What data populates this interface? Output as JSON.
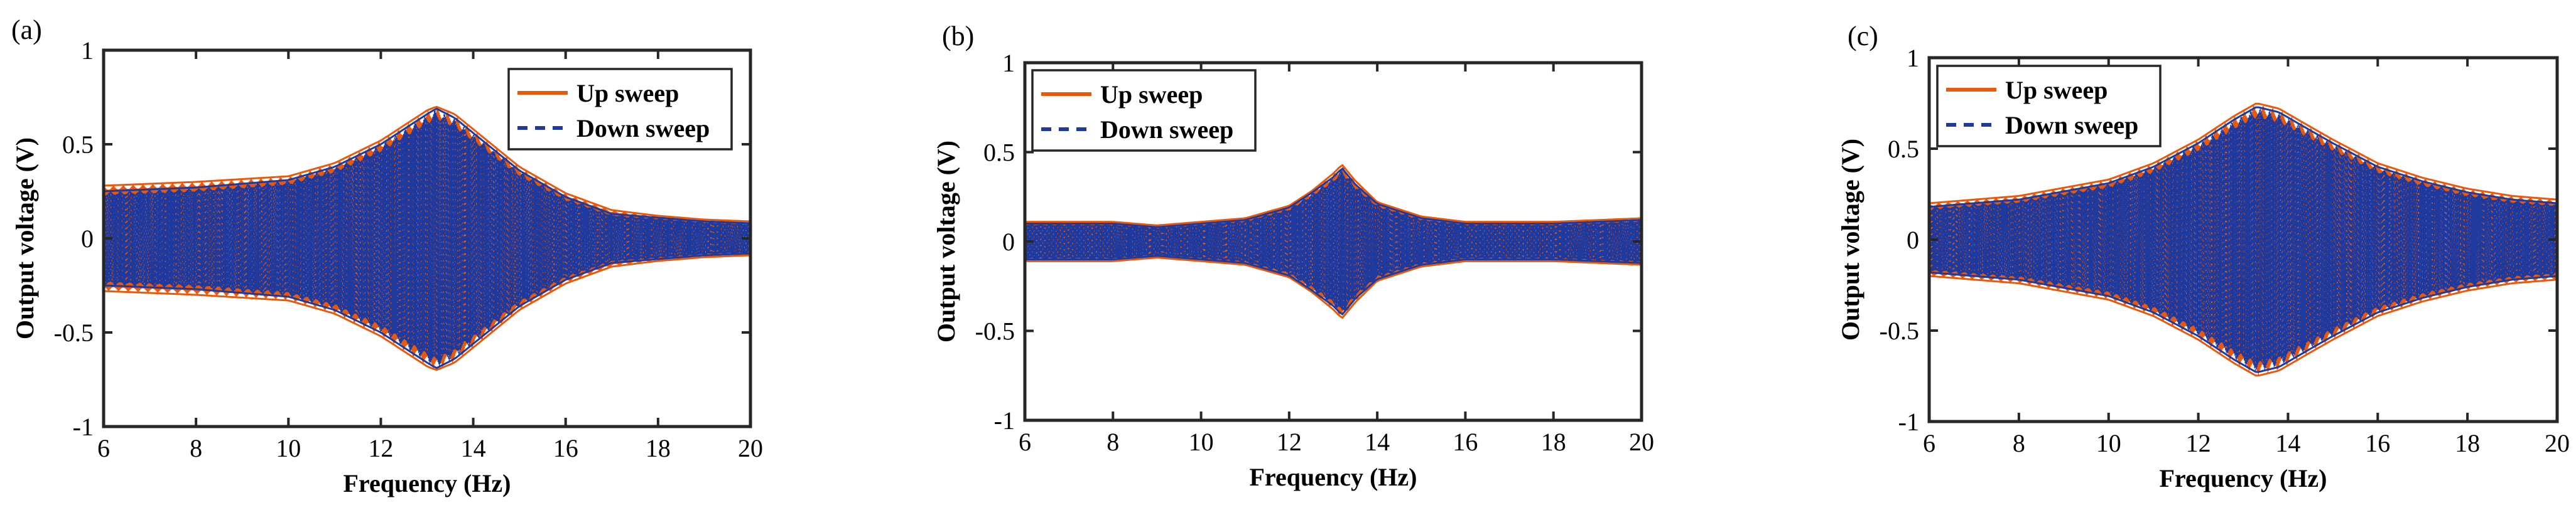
{
  "colors": {
    "up": "#e8590c",
    "down": "#1f3a9e",
    "axis": "#262626"
  },
  "chart_data": [
    {
      "panel_label": "(a)",
      "type": "line",
      "xlabel": "Frequency (Hz)",
      "ylabel": "Output voltage (V)",
      "xlim": [
        6,
        20
      ],
      "ylim": [
        -1,
        1
      ],
      "xticks": [
        "6",
        "8",
        "10",
        "12",
        "14",
        "16",
        "18",
        "20"
      ],
      "yticks": [
        "-1",
        "-0.5",
        "0",
        "0.5",
        "1"
      ],
      "legend_position": "top-right",
      "series": [
        {
          "name": "Up sweep",
          "style": "solid",
          "envelope": {
            "x": [
              6,
              8,
              10,
              11,
              12,
              12.5,
              13,
              13.2,
              13.6,
              14,
              15,
              16,
              17,
              18,
              19,
              20
            ],
            "amp": [
              0.28,
              0.3,
              0.33,
              0.4,
              0.52,
              0.6,
              0.68,
              0.7,
              0.66,
              0.58,
              0.38,
              0.24,
              0.15,
              0.12,
              0.1,
              0.09
            ]
          }
        },
        {
          "name": "Down sweep",
          "style": "dashed",
          "envelope": {
            "x": [
              6,
              8,
              10,
              11,
              12,
              12.5,
              13,
              13.2,
              13.6,
              14,
              15,
              16,
              17,
              18,
              19,
              20
            ],
            "amp": [
              0.25,
              0.27,
              0.31,
              0.38,
              0.5,
              0.58,
              0.66,
              0.69,
              0.64,
              0.56,
              0.36,
              0.22,
              0.13,
              0.11,
              0.09,
              0.08
            ]
          }
        }
      ]
    },
    {
      "panel_label": "(b)",
      "type": "line",
      "xlabel": "Frequency (Hz)",
      "ylabel": "Output voltage (V)",
      "xlim": [
        6,
        20
      ],
      "ylim": [
        -1,
        1
      ],
      "xticks": [
        "6",
        "8",
        "10",
        "12",
        "14",
        "16",
        "18",
        "20"
      ],
      "yticks": [
        "-1",
        "-0.5",
        "0",
        "0.5",
        "1"
      ],
      "legend_position": "top-left",
      "series": [
        {
          "name": "Up sweep",
          "style": "solid",
          "envelope": {
            "x": [
              6,
              8,
              9,
              10,
              11,
              12,
              12.5,
              13,
              13.2,
              13.5,
              14,
              15,
              16,
              18,
              20
            ],
            "amp": [
              0.11,
              0.11,
              0.09,
              0.11,
              0.13,
              0.2,
              0.28,
              0.38,
              0.43,
              0.34,
              0.22,
              0.14,
              0.11,
              0.11,
              0.13
            ]
          }
        },
        {
          "name": "Down sweep",
          "style": "dashed",
          "envelope": {
            "x": [
              6,
              8,
              9,
              10,
              11,
              12,
              12.5,
              13,
              13.2,
              13.5,
              14,
              15,
              16,
              18,
              20
            ],
            "amp": [
              0.1,
              0.1,
              0.08,
              0.1,
              0.12,
              0.19,
              0.27,
              0.36,
              0.41,
              0.32,
              0.21,
              0.13,
              0.1,
              0.1,
              0.12
            ]
          }
        }
      ]
    },
    {
      "panel_label": "(c)",
      "type": "line",
      "xlabel": "Frequency (Hz)",
      "ylabel": "Output voltage (V)",
      "xlim": [
        6,
        20
      ],
      "ylim": [
        -1,
        1
      ],
      "xticks": [
        "6",
        "8",
        "10",
        "12",
        "14",
        "16",
        "18",
        "20"
      ],
      "yticks": [
        "-1",
        "-0.5",
        "0",
        "0.5",
        "1"
      ],
      "legend_position": "top-left",
      "series": [
        {
          "name": "Up sweep",
          "style": "solid",
          "envelope": {
            "x": [
              6,
              8,
              10,
              11,
              12,
              12.8,
              13.3,
              13.8,
              14.5,
              15,
              16,
              17,
              18,
              19,
              20
            ],
            "amp": [
              0.2,
              0.24,
              0.33,
              0.42,
              0.55,
              0.68,
              0.75,
              0.72,
              0.62,
              0.55,
              0.42,
              0.34,
              0.28,
              0.24,
              0.22
            ]
          }
        },
        {
          "name": "Down sweep",
          "style": "dashed",
          "envelope": {
            "x": [
              6,
              8,
              10,
              11,
              12,
              12.8,
              13.3,
              13.8,
              14.5,
              15,
              16,
              17,
              18,
              19,
              20
            ],
            "amp": [
              0.18,
              0.22,
              0.31,
              0.4,
              0.53,
              0.66,
              0.73,
              0.7,
              0.6,
              0.53,
              0.4,
              0.32,
              0.26,
              0.22,
              0.2
            ]
          }
        }
      ]
    }
  ]
}
